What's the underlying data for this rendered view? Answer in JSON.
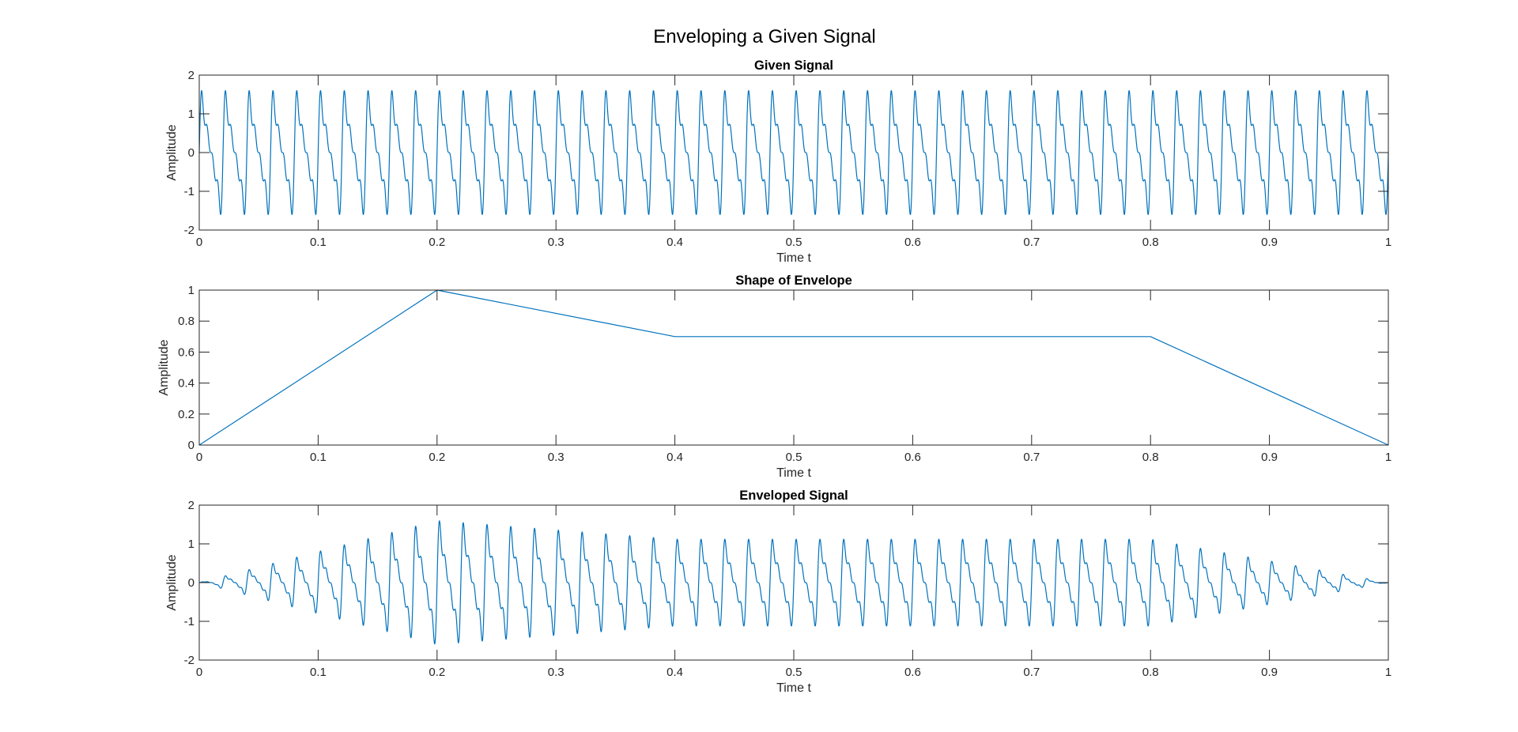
{
  "figure": {
    "title": "Enveloping a Given Signal"
  },
  "chart_data": [
    {
      "type": "line",
      "title": "Given Signal",
      "xlabel": "Time t",
      "ylabel": "Amplitude",
      "xlim": [
        0,
        1
      ],
      "ylim": [
        -2,
        2
      ],
      "xticks": [
        0,
        0.1,
        0.2,
        0.3,
        0.4,
        0.5,
        0.6,
        0.7,
        0.8,
        0.9,
        1
      ],
      "xtick_labels": [
        "0",
        "0.1",
        "0.2",
        "0.3",
        "0.4",
        "0.5",
        "0.6",
        "0.7",
        "0.8",
        "0.9",
        "1"
      ],
      "yticks": [
        -2,
        -1,
        0,
        1,
        2
      ],
      "ytick_labels": [
        "-2",
        "-1",
        "0",
        "1",
        "2"
      ],
      "grid": false,
      "color": "#0072BD",
      "signal": {
        "period": 0.02,
        "components": [
          {
            "harmonic": 1,
            "amplitude": 1.0
          },
          {
            "harmonic": 2,
            "amplitude": 0.5
          },
          {
            "harmonic": 3,
            "amplitude": 0.333
          },
          {
            "harmonic": 4,
            "amplitude": 0.25
          }
        ],
        "min": -1.6,
        "max": 1.6
      }
    },
    {
      "type": "line",
      "title": "Shape of Envelope",
      "xlabel": "Time t",
      "ylabel": "Amplitude",
      "xlim": [
        0,
        1
      ],
      "ylim": [
        0,
        1
      ],
      "xticks": [
        0,
        0.1,
        0.2,
        0.3,
        0.4,
        0.5,
        0.6,
        0.7,
        0.8,
        0.9,
        1
      ],
      "xtick_labels": [
        "0",
        "0.1",
        "0.2",
        "0.3",
        "0.4",
        "0.5",
        "0.6",
        "0.7",
        "0.8",
        "0.9",
        "1"
      ],
      "yticks": [
        0,
        0.2,
        0.4,
        0.6,
        0.8,
        1
      ],
      "ytick_labels": [
        "0",
        "0.2",
        "0.4",
        "0.6",
        "0.8",
        "1"
      ],
      "grid": false,
      "color": "#0072BD",
      "x": [
        0,
        0.2,
        0.4,
        0.8,
        1.0
      ],
      "y": [
        0,
        1.0,
        0.7,
        0.7,
        0
      ]
    },
    {
      "type": "line",
      "title": "Enveloped Signal",
      "xlabel": "Time t",
      "ylabel": "Amplitude",
      "xlim": [
        0,
        1
      ],
      "ylim": [
        -2,
        2
      ],
      "xticks": [
        0,
        0.1,
        0.2,
        0.3,
        0.4,
        0.5,
        0.6,
        0.7,
        0.8,
        0.9,
        1
      ],
      "xtick_labels": [
        "0",
        "0.1",
        "0.2",
        "0.3",
        "0.4",
        "0.5",
        "0.6",
        "0.7",
        "0.8",
        "0.9",
        "1"
      ],
      "yticks": [
        -2,
        -1,
        0,
        1,
        2
      ],
      "ytick_labels": [
        "-2",
        "-1",
        "0",
        "1",
        "2"
      ],
      "grid": false,
      "color": "#0072BD",
      "composition": "Given Signal × Shape of Envelope"
    }
  ]
}
